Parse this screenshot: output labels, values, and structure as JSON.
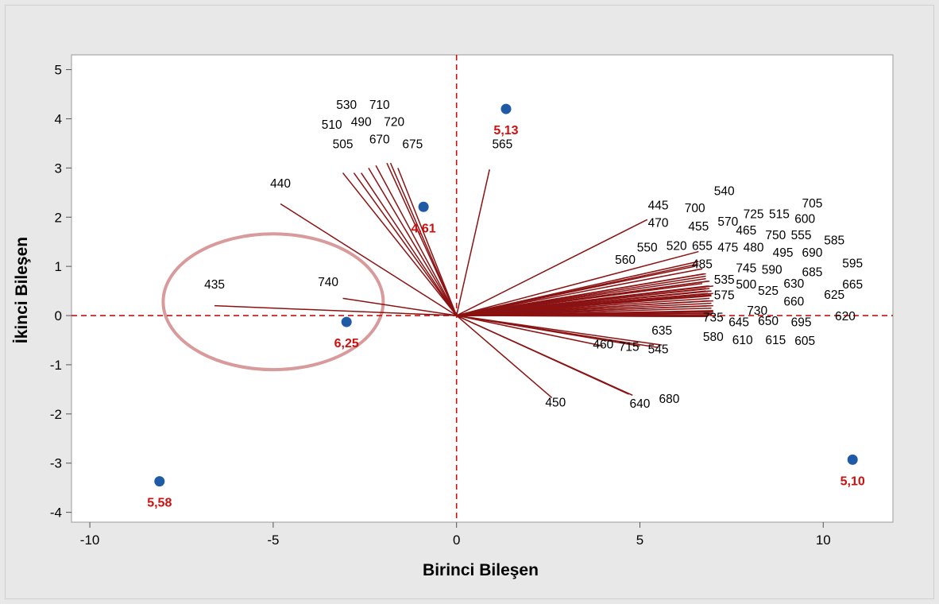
{
  "chart_data": {
    "type": "biplot",
    "xlabel": "Birinci Bileşen",
    "ylabel": "İkinci Bileşen",
    "xlim": [
      -10.5,
      11.9
    ],
    "ylim": [
      -4.2,
      5.3
    ],
    "xticks": [
      -10,
      -5,
      0,
      5,
      10
    ],
    "yticks": [
      -4,
      -3,
      -2,
      -1,
      0,
      1,
      2,
      3,
      4,
      5
    ],
    "grid": false,
    "reference_lines": {
      "x": 0,
      "y": 0,
      "color": "#d42a2a"
    },
    "colors": {
      "frame_background": "#e8e8e8",
      "plot_background": "#ffffff",
      "loading_vector": "#8b1212",
      "score_point": "#1f5aa6",
      "score_label": "#cc1010",
      "ellipse": "#d89a9a"
    },
    "scores": [
      {
        "label": "5,13",
        "x": 1.35,
        "y": 4.2
      },
      {
        "label": "4,61",
        "x": -0.9,
        "y": 2.21
      },
      {
        "label": "6,25",
        "x": -3.0,
        "y": -0.13
      },
      {
        "label": "5,58",
        "x": -8.1,
        "y": -3.37
      },
      {
        "label": "5,10",
        "x": 10.8,
        "y": -2.93
      }
    ],
    "loadings": [
      {
        "label": "530",
        "x": -2.6,
        "y": 2.9
      },
      {
        "label": "710",
        "x": -1.9,
        "y": 3.1
      },
      {
        "label": "510",
        "x": -2.8,
        "y": 2.9
      },
      {
        "label": "490",
        "x": -2.4,
        "y": 3.0
      },
      {
        "label": "720",
        "x": -1.8,
        "y": 3.1
      },
      {
        "label": "505",
        "x": -3.1,
        "y": 2.9
      },
      {
        "label": "670",
        "x": -2.2,
        "y": 3.05
      },
      {
        "label": "675",
        "x": -1.6,
        "y": 3.0
      },
      {
        "label": "565",
        "x": 0.9,
        "y": 2.97
      },
      {
        "label": "440",
        "x": -4.8,
        "y": 2.27
      },
      {
        "label": "435",
        "x": -6.6,
        "y": 0.2
      },
      {
        "label": "740",
        "x": -3.1,
        "y": 0.35
      },
      {
        "label": "445",
        "x": 5.2,
        "y": 1.95
      },
      {
        "label": "700",
        "x": 6.6,
        "y": 1.3
      },
      {
        "label": "540",
        "x": 7.0,
        "y": 0.6
      },
      {
        "label": "705",
        "x": 7.0,
        "y": 0.45
      },
      {
        "label": "470",
        "x": 6.6,
        "y": 1.1
      },
      {
        "label": "455",
        "x": 6.8,
        "y": 0.85
      },
      {
        "label": "570",
        "x": 6.9,
        "y": 0.7
      },
      {
        "label": "725",
        "x": 6.9,
        "y": 0.55
      },
      {
        "label": "515",
        "x": 6.95,
        "y": 0.5
      },
      {
        "label": "600",
        "x": 6.95,
        "y": 0.42
      },
      {
        "label": "465",
        "x": 6.8,
        "y": 0.75
      },
      {
        "label": "750",
        "x": 6.85,
        "y": 0.6
      },
      {
        "label": "555",
        "x": 6.9,
        "y": 0.5
      },
      {
        "label": "585",
        "x": 6.95,
        "y": 0.4
      },
      {
        "label": "550",
        "x": 6.6,
        "y": 1.05
      },
      {
        "label": "520",
        "x": 6.7,
        "y": 0.95
      },
      {
        "label": "655",
        "x": 6.75,
        "y": 0.85
      },
      {
        "label": "475",
        "x": 6.8,
        "y": 0.8
      },
      {
        "label": "480",
        "x": 6.85,
        "y": 0.7
      },
      {
        "label": "495",
        "x": 6.9,
        "y": 0.6
      },
      {
        "label": "690",
        "x": 6.95,
        "y": 0.5
      },
      {
        "label": "560",
        "x": 6.5,
        "y": 1.0
      },
      {
        "label": "485",
        "x": 6.7,
        "y": 0.65
      },
      {
        "label": "745",
        "x": 6.8,
        "y": 0.55
      },
      {
        "label": "590",
        "x": 6.85,
        "y": 0.45
      },
      {
        "label": "685",
        "x": 6.9,
        "y": 0.35
      },
      {
        "label": "595",
        "x": 7.0,
        "y": 0.3
      },
      {
        "label": "535",
        "x": 6.8,
        "y": 0.5
      },
      {
        "label": "500",
        "x": 6.85,
        "y": 0.4
      },
      {
        "label": "525",
        "x": 6.9,
        "y": 0.3
      },
      {
        "label": "630",
        "x": 6.95,
        "y": 0.25
      },
      {
        "label": "665",
        "x": 7.0,
        "y": 0.2
      },
      {
        "label": "575",
        "x": 6.9,
        "y": 0.2
      },
      {
        "label": "660",
        "x": 6.95,
        "y": 0.15
      },
      {
        "label": "625",
        "x": 7.0,
        "y": 0.1
      },
      {
        "label": "730",
        "x": 6.9,
        "y": 0.05
      },
      {
        "label": "735",
        "x": 6.85,
        "y": -0.02
      },
      {
        "label": "645",
        "x": 6.9,
        "y": 0.0
      },
      {
        "label": "650",
        "x": 6.95,
        "y": 0.02
      },
      {
        "label": "695",
        "x": 7.0,
        "y": 0.05
      },
      {
        "label": "620",
        "x": 7.0,
        "y": 0.08
      },
      {
        "label": "635",
        "x": 5.6,
        "y": -0.6
      },
      {
        "label": "580",
        "x": 6.7,
        "y": -0.02
      },
      {
        "label": "610",
        "x": 6.8,
        "y": -0.01
      },
      {
        "label": "615",
        "x": 6.85,
        "y": 0.0
      },
      {
        "label": "605",
        "x": 6.9,
        "y": 0.01
      },
      {
        "label": "460",
        "x": 4.0,
        "y": -0.62
      },
      {
        "label": "715",
        "x": 5.0,
        "y": -0.62
      },
      {
        "label": "545",
        "x": 5.5,
        "y": -0.65
      },
      {
        "label": "450",
        "x": 2.6,
        "y": -1.67
      },
      {
        "label": "640",
        "x": 4.7,
        "y": -1.6
      },
      {
        "label": "680",
        "x": 4.8,
        "y": -1.62
      }
    ]
  },
  "label_positions": {
    "530": [
      -3.0,
      4.2
    ],
    "710": [
      -2.1,
      4.2
    ],
    "510": [
      -3.4,
      3.8
    ],
    "490": [
      -2.6,
      3.85
    ],
    "720": [
      -1.7,
      3.85
    ],
    "505": [
      -3.1,
      3.4
    ],
    "670": [
      -2.1,
      3.5
    ],
    "675": [
      -1.2,
      3.4
    ],
    "565": [
      1.25,
      3.4
    ],
    "440": [
      -4.8,
      2.6
    ],
    "435": [
      -6.6,
      0.55
    ],
    "740": [
      -3.5,
      0.6
    ],
    "445": [
      5.5,
      2.16
    ],
    "700": [
      6.5,
      2.1
    ],
    "540": [
      7.3,
      2.45
    ],
    "705": [
      9.7,
      2.2
    ],
    "470": [
      5.5,
      1.8
    ],
    "455": [
      6.6,
      1.73
    ],
    "570": [
      7.4,
      1.83
    ],
    "725": [
      8.1,
      1.98
    ],
    "515": [
      8.8,
      1.98
    ],
    "600": [
      9.5,
      1.88
    ],
    "465": [
      7.9,
      1.65
    ],
    "750": [
      8.7,
      1.55
    ],
    "555": [
      9.4,
      1.55
    ],
    "585": [
      10.3,
      1.45
    ],
    "550": [
      5.2,
      1.3
    ],
    "520": [
      6.0,
      1.33
    ],
    "655": [
      6.7,
      1.33
    ],
    "475": [
      7.4,
      1.3
    ],
    "480": [
      8.1,
      1.3
    ],
    "495": [
      8.9,
      1.2
    ],
    "690": [
      9.7,
      1.2
    ],
    "560": [
      4.6,
      1.05
    ],
    "485": [
      6.7,
      0.96
    ],
    "745": [
      7.9,
      0.88
    ],
    "590": [
      8.6,
      0.85
    ],
    "685": [
      9.7,
      0.8
    ],
    "595": [
      10.8,
      0.98
    ],
    "535": [
      7.3,
      0.65
    ],
    "500": [
      7.9,
      0.55
    ],
    "525": [
      8.5,
      0.42
    ],
    "630": [
      9.2,
      0.57
    ],
    "665": [
      10.8,
      0.55
    ],
    "575": [
      7.3,
      0.33
    ],
    "660": [
      9.2,
      0.2
    ],
    "625": [
      10.3,
      0.34
    ],
    "730": [
      8.2,
      0.02
    ],
    "735": [
      7.0,
      -0.12
    ],
    "645": [
      7.7,
      -0.22
    ],
    "650": [
      8.5,
      -0.19
    ],
    "695": [
      9.4,
      -0.22
    ],
    "620": [
      10.6,
      -0.1
    ],
    "635": [
      5.6,
      -0.39
    ],
    "580": [
      7.0,
      -0.52
    ],
    "610": [
      7.8,
      -0.58
    ],
    "615": [
      8.7,
      -0.58
    ],
    "605": [
      9.5,
      -0.6
    ],
    "460": [
      4.0,
      -0.67
    ],
    "715": [
      4.7,
      -0.72
    ],
    "545": [
      5.5,
      -0.77
    ],
    "450": [
      2.7,
      -1.85
    ],
    "640": [
      5.0,
      -1.87
    ],
    "680": [
      5.8,
      -1.78
    ]
  }
}
